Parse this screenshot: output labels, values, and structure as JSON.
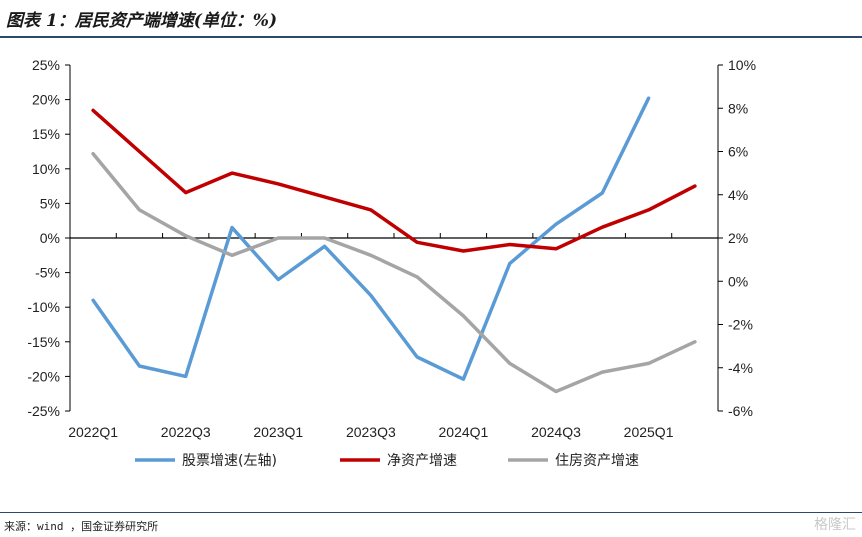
{
  "title": "图表 1：居民资产端增速(单位：%)",
  "source": "来源：wind ，国金证券研究所",
  "watermark": "格隆汇",
  "chart_data": {
    "type": "line",
    "categories": [
      "2022Q1",
      "2022Q2",
      "2022Q3",
      "2022Q4",
      "2023Q1",
      "2023Q2",
      "2023Q3",
      "2023Q4",
      "2024Q1",
      "2024Q2",
      "2024Q3",
      "2024Q4",
      "2025Q1",
      "2025Q2"
    ],
    "x_tick_labels": [
      "2022Q1",
      "2022Q3",
      "2023Q1",
      "2023Q3",
      "2024Q1",
      "2024Q3",
      "2025Q1"
    ],
    "left_axis": {
      "ylim": [
        -25,
        25
      ],
      "ticks": [
        25,
        20,
        15,
        10,
        5,
        0,
        -5,
        -10,
        -15,
        -20,
        -25
      ],
      "format": "percent"
    },
    "right_axis": {
      "ylim": [
        -6,
        10
      ],
      "ticks": [
        10,
        8,
        6,
        4,
        2,
        0,
        -2,
        -4,
        -6
      ],
      "format": "percent"
    },
    "series": [
      {
        "name": "股票增速(左轴)",
        "axis": "left",
        "color": "#5b9bd5",
        "values": [
          -9.0,
          -18.5,
          -20.0,
          1.5,
          -6.0,
          -1.2,
          -8.3,
          -17.2,
          -20.4,
          -3.7,
          2.0,
          6.5,
          20.2,
          null
        ]
      },
      {
        "name": "净资产增速",
        "axis": "right",
        "color": "#c00000",
        "values": [
          7.9,
          6.0,
          4.1,
          5.0,
          4.5,
          3.9,
          3.3,
          1.8,
          1.4,
          1.7,
          1.5,
          2.5,
          3.3,
          4.4
        ]
      },
      {
        "name": "住房资产增速",
        "axis": "right",
        "color": "#a5a5a5",
        "values": [
          5.9,
          3.3,
          2.1,
          1.2,
          2.0,
          2.0,
          1.2,
          0.2,
          -1.6,
          -3.8,
          -5.1,
          -4.2,
          -3.8,
          -2.8
        ]
      }
    ],
    "legend_position": "bottom"
  }
}
